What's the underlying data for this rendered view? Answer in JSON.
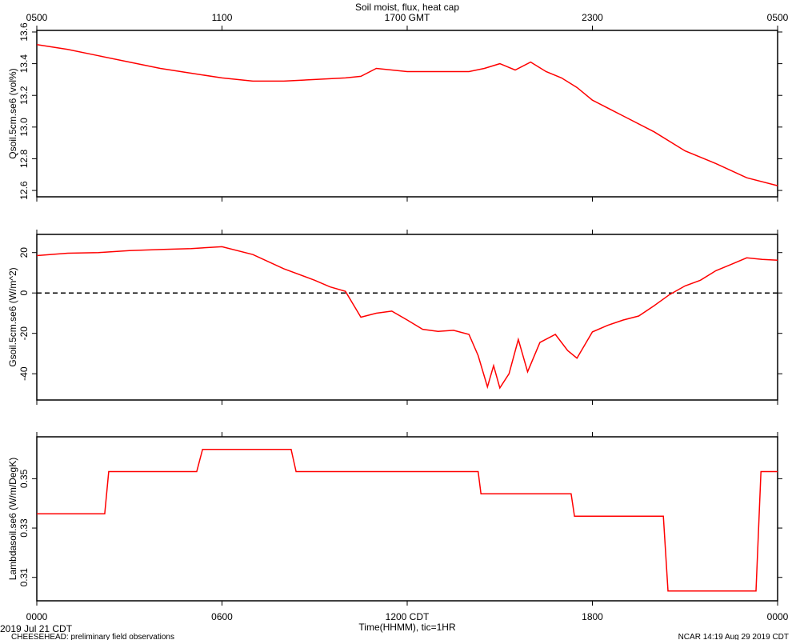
{
  "title": "Soil moist, flux, heat cap",
  "x_axis": {
    "xlim": [
      0,
      24
    ],
    "xticks": [
      {
        "value": 0,
        "label": "0000"
      },
      {
        "value": 6,
        "label": "0600"
      },
      {
        "value": 12,
        "label": "1200 CDT"
      },
      {
        "value": 18,
        "label": "1800"
      },
      {
        "value": 24,
        "label": "0000"
      }
    ],
    "x2ticks": [
      {
        "value": 0,
        "label": "0500"
      },
      {
        "value": 6,
        "label": "1100"
      },
      {
        "value": 12,
        "label": "1700 GMT"
      },
      {
        "value": 18,
        "label": "2300"
      },
      {
        "value": 24,
        "label": "0500"
      }
    ],
    "xlabel": "Time(HHMM), tic=1HR"
  },
  "footer": {
    "date": "2019 Jul 21 CDT",
    "left_note": "CHEESEHEAD: preliminary field observations",
    "right_note": "NCAR 14:19 Aug 29 2019 CDT"
  },
  "chart_data": [
    {
      "type": "line",
      "ylabel": "Qsoil.5cm.se6 (vol%)",
      "ylim": [
        12.56,
        13.61
      ],
      "yticks": [
        12.6,
        12.8,
        {
          "value": 13,
          "label": "13.0"
        },
        13.2,
        13.4,
        13.6
      ],
      "series": [
        {
          "name": "Qsoil.5cm.se6",
          "color": "#ff0000",
          "x": [
            0,
            1,
            2,
            3,
            4,
            5,
            6,
            7,
            8,
            9,
            10,
            10.5,
            11,
            12,
            13,
            13.5,
            14,
            14.5,
            15,
            15.5,
            16,
            16.5,
            17,
            17.5,
            18,
            19,
            20,
            21,
            22,
            23,
            24
          ],
          "values": [
            13.52,
            13.49,
            13.45,
            13.41,
            13.37,
            13.34,
            13.31,
            13.29,
            13.29,
            13.3,
            13.31,
            13.32,
            13.37,
            13.35,
            13.35,
            13.35,
            13.35,
            13.37,
            13.4,
            13.36,
            13.41,
            13.35,
            13.31,
            13.25,
            13.17,
            13.07,
            12.97,
            12.85,
            12.77,
            12.68,
            12.63
          ]
        }
      ]
    },
    {
      "type": "line",
      "ylabel": "Gsoil.5cm.se6 (W/m^2)",
      "ylim": [
        -53,
        29
      ],
      "yticks": [
        -40,
        -20,
        0,
        20
      ],
      "reference_line": {
        "value": 0,
        "style": "dashed"
      },
      "series": [
        {
          "name": "Gsoil.5cm.se6",
          "color": "#ff0000",
          "x": [
            0,
            1,
            2,
            3,
            4,
            5,
            6,
            7,
            8,
            9,
            9.5,
            10,
            10.5,
            11,
            11.5,
            12,
            12.5,
            13,
            13.5,
            14,
            14.3,
            14.6,
            14.8,
            15,
            15.3,
            15.6,
            15.9,
            16.3,
            16.8,
            17.2,
            17.5,
            18,
            18.5,
            19,
            19.5,
            20,
            20.5,
            21,
            21.5,
            22,
            22.5,
            23,
            23.5,
            24
          ],
          "values": [
            18.5,
            19.7,
            20,
            21,
            21.5,
            22,
            22.9,
            19,
            12,
            6.3,
            3,
            0.8,
            -12,
            -10,
            -9,
            -13.4,
            -18,
            -19,
            -18.5,
            -20.5,
            -31,
            -46.5,
            -36,
            -47,
            -40,
            -23,
            -39,
            -24.5,
            -20.5,
            -28.5,
            -32.3,
            -19.3,
            -16,
            -13.4,
            -11.4,
            -6.3,
            -0.8,
            3.5,
            6.3,
            11,
            14.2,
            17.4,
            16.6,
            16.2
          ]
        }
      ]
    },
    {
      "type": "line",
      "ylabel": "Lambdasoil.se6 (W/m/DegK)",
      "ylim": [
        0.3005,
        0.367
      ],
      "yticks": [
        0.31,
        0.33,
        0.35
      ],
      "series": [
        {
          "name": "Lambdasoil.se6",
          "color": "#ff0000",
          "x": [
            0,
            2.2,
            2.33,
            5.18,
            5.37,
            8.24,
            8.4,
            14.3,
            14.39,
            17.31,
            17.42,
            20.3,
            20.45,
            23.3,
            23.46,
            24
          ],
          "values": [
            0.3358,
            0.3358,
            0.3529,
            0.3529,
            0.3619,
            0.3619,
            0.3529,
            0.3529,
            0.3439,
            0.3439,
            0.3348,
            0.3348,
            0.3045,
            0.3045,
            0.3529,
            0.3529
          ]
        }
      ]
    }
  ]
}
